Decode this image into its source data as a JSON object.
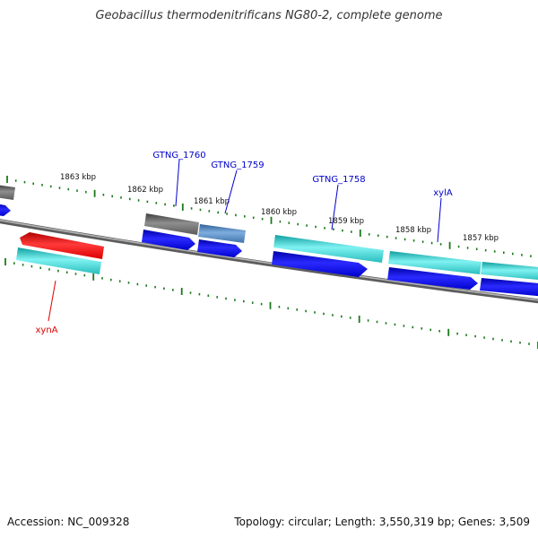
{
  "title": "Geobacillus thermodenitrificans NG80-2, complete genome",
  "footer": {
    "accession": "Accession: NC_009328",
    "summary": "Topology: circular; Length: 3,550,319 bp; Genes: 3,509"
  },
  "colors": {
    "backbone": "#808080",
    "tick": "#1a7a1a",
    "label_blue": "#0000cc",
    "label_red": "#dd0000",
    "gene_cyan": "#33cccc",
    "gene_blue": "#0000ee",
    "gene_red": "#ee0000",
    "gene_gray": "#707070",
    "gene_steel": "#4f86c0"
  },
  "kbp_labels": [
    "1863 kbp",
    "1862 kbp",
    "1861 kbp",
    "1860 kbp",
    "1859 kbp",
    "1858 kbp",
    "1857 kbp"
  ],
  "gene_labels": [
    {
      "text": "GTNG_1760",
      "color": "label_blue"
    },
    {
      "text": "GTNG_1759",
      "color": "label_blue"
    },
    {
      "text": "GTNG_1758",
      "color": "label_blue"
    },
    {
      "text": "xylA",
      "color": "label_blue"
    },
    {
      "text": "xynA",
      "color": "label_red"
    }
  ]
}
